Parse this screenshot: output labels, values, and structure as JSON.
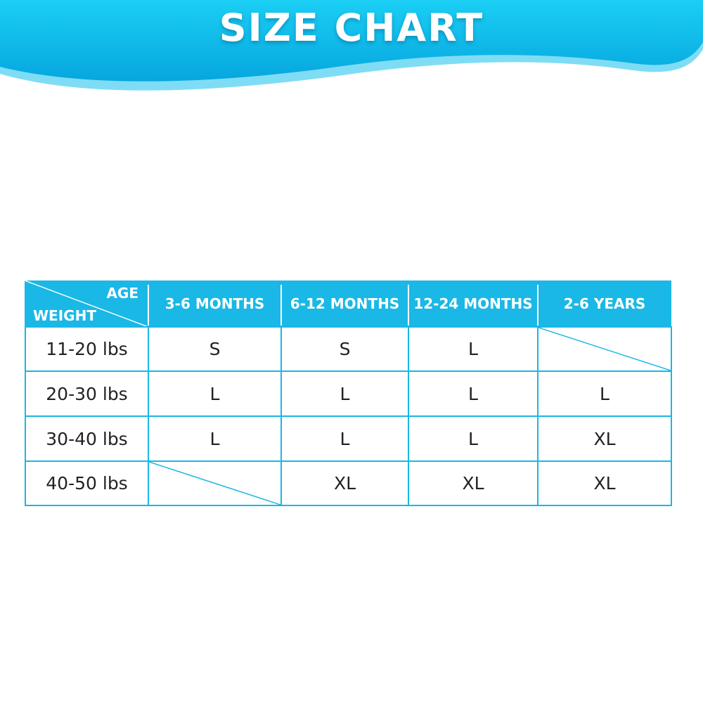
{
  "title": "SIZE CHART",
  "colors": {
    "accent": "#1ab8e6",
    "wave_light": "#7fdcf5",
    "text": "#222222"
  },
  "table": {
    "corner": {
      "top_label": "AGE",
      "bottom_label": "WEIGHT"
    },
    "columns": [
      "3-6 MONTHS",
      "6-12 MONTHS",
      "12-24 MONTHS",
      "2-6 YEARS"
    ],
    "rows": [
      {
        "weight": "11-20 lbs",
        "sizes": [
          "S",
          "S",
          "L",
          ""
        ]
      },
      {
        "weight": "20-30 lbs",
        "sizes": [
          "L",
          "L",
          "L",
          "L"
        ]
      },
      {
        "weight": "30-40 lbs",
        "sizes": [
          "L",
          "L",
          "L",
          "XL"
        ]
      },
      {
        "weight": "40-50 lbs",
        "sizes": [
          "",
          "XL",
          "XL",
          "XL"
        ]
      }
    ]
  }
}
